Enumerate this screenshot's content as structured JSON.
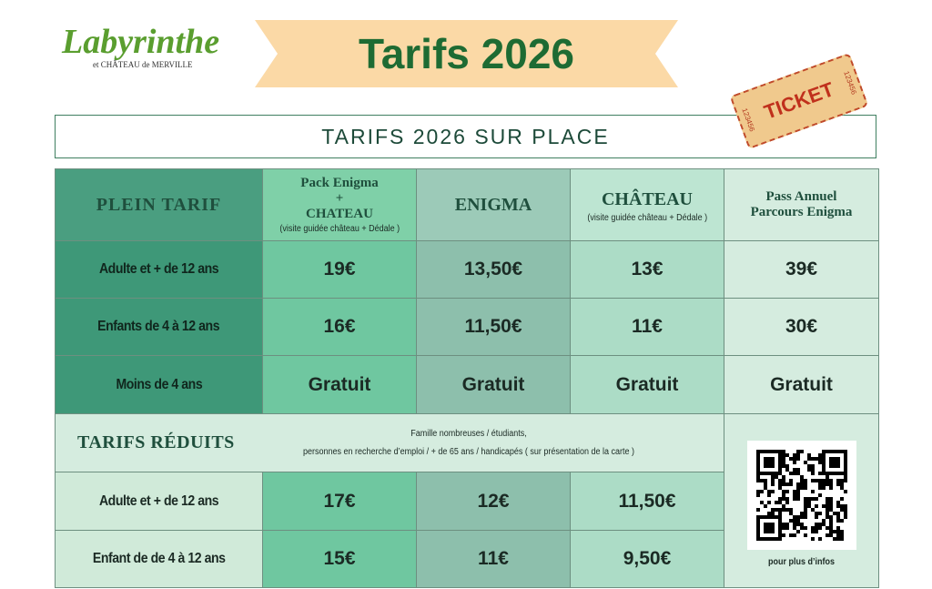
{
  "logo": {
    "name": "Labyrinthe",
    "subtitle": "et CHÂTEAU de MERVILLE"
  },
  "banner": {
    "title": "Tarifs 2026"
  },
  "ticket": {
    "label": "TICKET",
    "number": "123456"
  },
  "heading": "TARIFS 2026 SUR PLACE",
  "table": {
    "header": {
      "label": "PLEIN TARIF",
      "columns": [
        {
          "lines": [
            "Pack Enigma",
            "+",
            "CHATEAU"
          ],
          "note": "(visite guidée château + Dédale )"
        },
        {
          "lines": [
            "ENIGMA"
          ]
        },
        {
          "lines": [
            "CHÂTEAU"
          ],
          "note": "(visite guidée château + Dédale )"
        },
        {
          "lines": [
            "Pass Annuel",
            "Parcours Enigma"
          ]
        }
      ]
    },
    "rows": [
      [
        "Adulte et + de 12 ans",
        "19€",
        "13,50€",
        "13€",
        "39€"
      ],
      [
        "Enfants de 4 à 12 ans",
        "16€",
        "11,50€",
        "11€",
        "30€"
      ],
      [
        "Moins de 4 ans",
        "Gratuit",
        "Gratuit",
        "Gratuit",
        "Gratuit"
      ]
    ],
    "reduced": {
      "label": "TARIFS RÉDUITS",
      "note": [
        "Famille nombreuses / étudiants,",
        "personnes en recherche d’emploi / + de 65 ans / handicapés ( sur présentation de la carte )"
      ],
      "rows": [
        [
          "Adulte et + de 12 ans",
          "17€",
          "12€",
          "11,50€"
        ],
        [
          "Enfant de de 4 à 12 ans",
          "15€",
          "11€",
          "9,50€"
        ]
      ],
      "qr_caption": "pour plus d’infos"
    }
  }
}
